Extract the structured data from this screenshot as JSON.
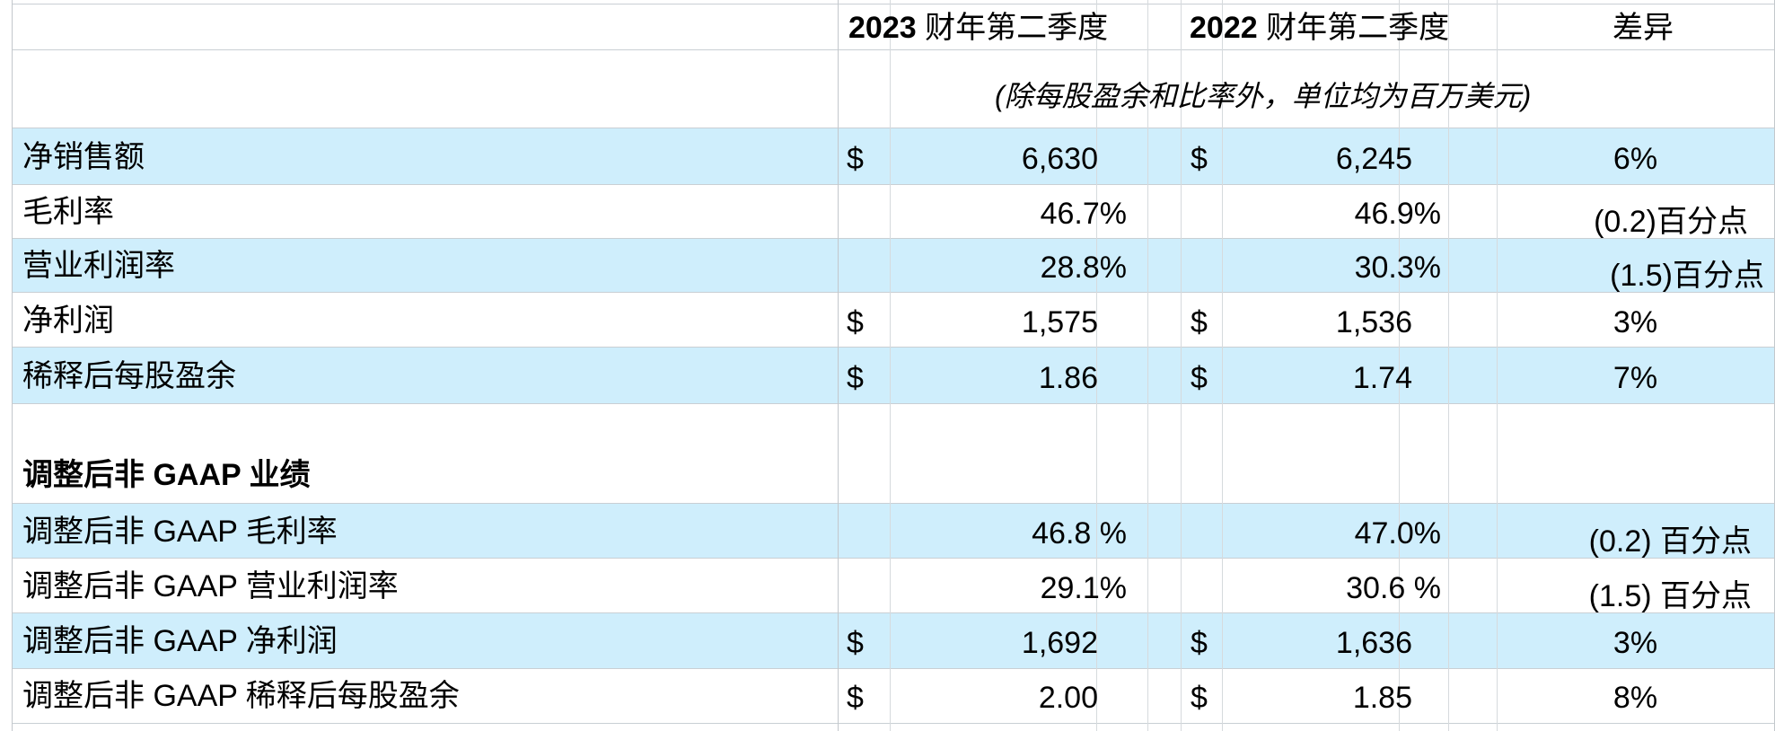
{
  "header": {
    "col1": "2023 财年第二季度",
    "col1_year": "2023",
    "col1_rest": " 财年第二季度",
    "col2_year": "2022",
    "col2_rest": " 财年第二季度",
    "col3": "差异",
    "unit_note": "(除每股盈余和比率外，单位均为百万美元)"
  },
  "gaap_rows": [
    {
      "label": "净销售额",
      "cur1": "$",
      "v1": "6,630",
      "cur2": "$",
      "v2": "6,245",
      "diff": "6%"
    },
    {
      "label": "毛利率",
      "cur1": "",
      "v1": "46.7%",
      "cur2": "",
      "v2": "46.9%",
      "diff": "(0.2)百分点"
    },
    {
      "label": "营业利润率",
      "cur1": "",
      "v1": "28.8%",
      "cur2": "",
      "v2": "30.3%",
      "diff": "(1.5)百分点"
    },
    {
      "label": "净利润",
      "cur1": "$",
      "v1": "1,575",
      "cur2": "$",
      "v2": "1,536",
      "diff": "3%"
    },
    {
      "label": "稀释后每股盈余",
      "cur1": "$",
      "v1": "1.86",
      "cur2": "$",
      "v2": "1.74",
      "diff": "7%"
    }
  ],
  "section_title": {
    "prefix": "调整后非 ",
    "bold": "GAAP",
    "suffix": " 业绩"
  },
  "nongaap_rows": [
    {
      "label": "调整后非 GAAP 毛利率",
      "cur1": "",
      "v1": "46.8 %",
      "cur2": "",
      "v2": "47.0%",
      "diff": "(0.2) 百分点"
    },
    {
      "label": "调整后非 GAAP 营业利润率",
      "cur1": "",
      "v1": "29.1%",
      "cur2": "",
      "v2": "30.6 %",
      "diff": "(1.5) 百分点"
    },
    {
      "label": "调整后非 GAAP 净利润",
      "cur1": "$",
      "v1": "1,692",
      "cur2": "$",
      "v2": "1,636",
      "diff": "3%"
    },
    {
      "label": "调整后非 GAAP 稀释后每股盈余",
      "cur1": "$",
      "v1": "2.00",
      "cur2": "$",
      "v2": "1.85",
      "diff": "8%"
    }
  ]
}
